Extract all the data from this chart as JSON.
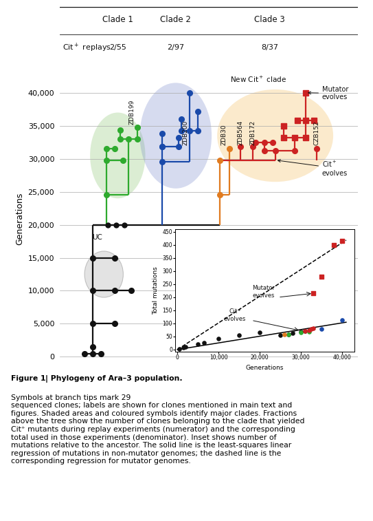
{
  "fig_width": 5.43,
  "fig_height": 7.57,
  "yticks": [
    0,
    5000,
    10000,
    15000,
    20000,
    25000,
    30000,
    35000,
    40000
  ],
  "ytick_labels": [
    "0",
    "5,000",
    "10,000",
    "15,000",
    "20,000",
    "25,000",
    "30,000",
    "35,000",
    "40,000"
  ],
  "ylabel": "Generations",
  "clade1_color": "#2eaa2e",
  "clade2_color": "#1a4aaa",
  "clade3_orange_color": "#e07b20",
  "clade3_red_color": "#cc2222",
  "black_color": "#111111",
  "header_clade1": "Clade 1",
  "header_clade2": "Clade 2",
  "header_clade3": "Clade 3",
  "replay_label": "Cit⁺ replays",
  "replay_clade1": "2/55",
  "replay_clade2": "2/97",
  "replay_clade3": "8/37"
}
